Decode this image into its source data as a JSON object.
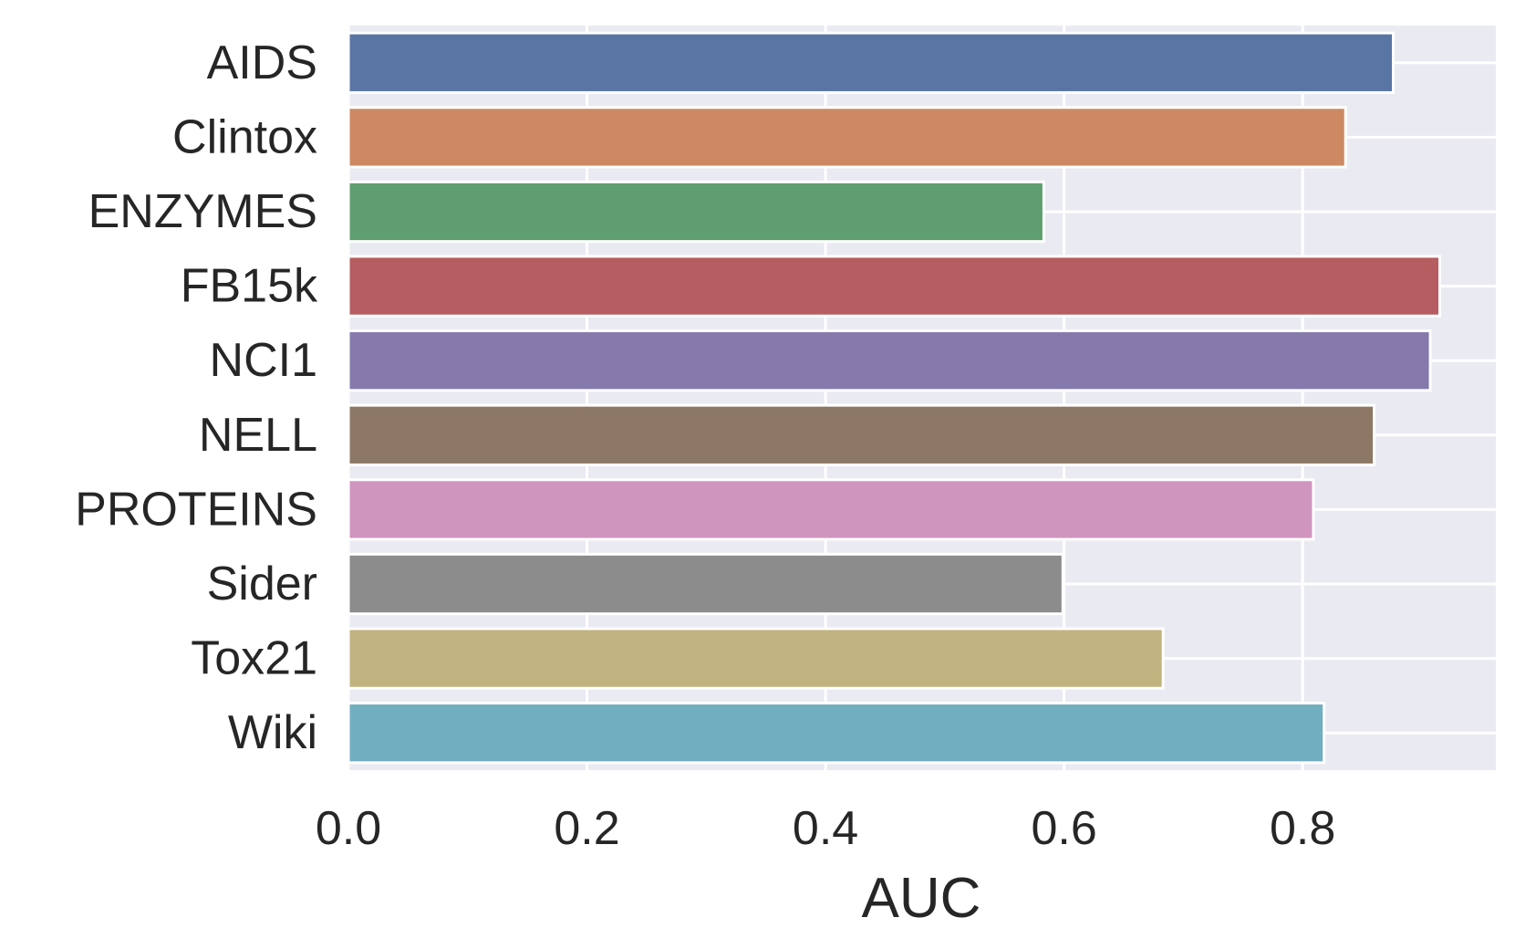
{
  "chart_data": {
    "type": "bar",
    "orientation": "horizontal",
    "categories": [
      "AIDS",
      "Clintox",
      "ENZYMES",
      "FB15k",
      "NCI1",
      "NELL",
      "PROTEINS",
      "Sider",
      "Tox21",
      "Wiki"
    ],
    "values": [
      0.876,
      0.836,
      0.583,
      0.915,
      0.907,
      0.86,
      0.809,
      0.599,
      0.683,
      0.818
    ],
    "colors": [
      "#5975a4",
      "#cc8963",
      "#5f9e6e",
      "#b55d60",
      "#857aab",
      "#8d7866",
      "#d095bf",
      "#8c8c8c",
      "#c1b37f",
      "#71aec0"
    ],
    "xlabel": "AUC",
    "ylabel": "",
    "title": "",
    "xlim": [
      0,
      0.962
    ],
    "xticks": [
      0.0,
      0.2,
      0.4,
      0.6,
      0.8
    ],
    "xtick_labels": [
      "0.0",
      "0.2",
      "0.4",
      "0.6",
      "0.8"
    ],
    "grid": true,
    "background": "#eaeaf2"
  }
}
